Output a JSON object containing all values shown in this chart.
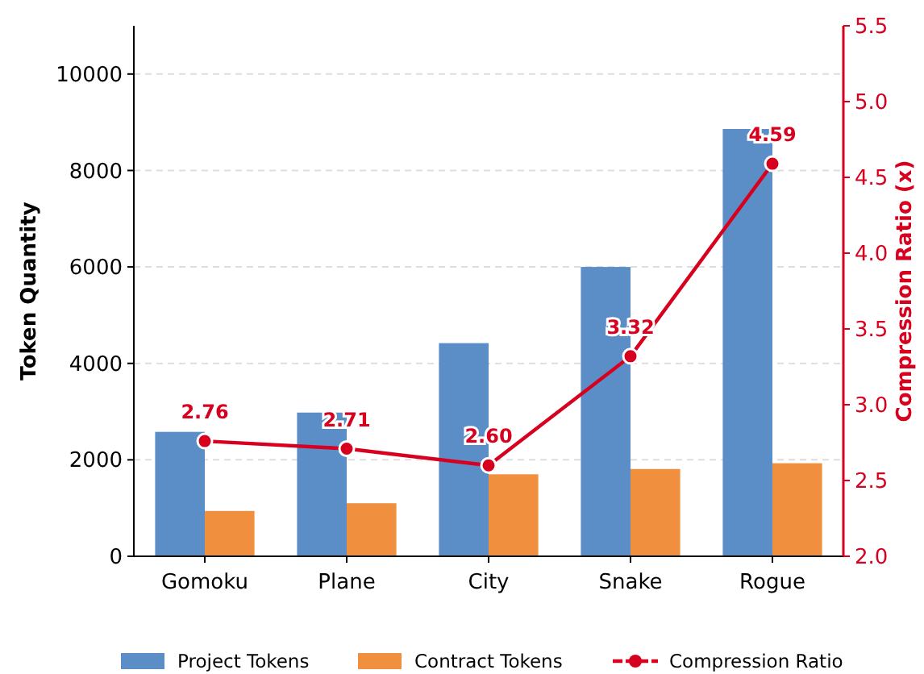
{
  "chart_data": {
    "type": "bar",
    "xlabel": null,
    "ylabel": "Token Quantity",
    "y2label": "Compression Ratio (x)",
    "categories": [
      "Gomoku",
      "Plane",
      "City",
      "Snake",
      "Rogue"
    ],
    "series": [
      {
        "name": "Project Tokens",
        "color": "#5b8ec6",
        "values": [
          2580,
          2980,
          4420,
          6000,
          8860
        ]
      },
      {
        "name": "Contract Tokens",
        "color": "#f0903f",
        "values": [
          940,
          1100,
          1700,
          1810,
          1930
        ]
      },
      {
        "name": "Compression Ratio",
        "type": "line",
        "axis": "y2",
        "color": "#d7001f",
        "marker": "circle",
        "values": [
          2.76,
          2.71,
          2.6,
          3.32,
          4.59
        ],
        "value_labels": [
          "2.76",
          "2.71",
          "2.60",
          "3.32",
          "4.59"
        ]
      }
    ],
    "ylim": [
      0,
      11000
    ],
    "yticks": [
      0,
      2000,
      4000,
      6000,
      8000,
      10000
    ],
    "y2lim": [
      2.0,
      5.5
    ],
    "y2ticks": [
      {
        "value": 2.0,
        "label": "2.0"
      },
      {
        "value": 2.5,
        "label": "2.5"
      },
      {
        "value": 3.0,
        "label": "3.0"
      },
      {
        "value": 3.5,
        "label": "3.5"
      },
      {
        "value": 4.0,
        "label": "4.0"
      },
      {
        "value": 4.5,
        "label": "4.5"
      },
      {
        "value": 5.0,
        "label": "5.0"
      },
      {
        "value": 5.5,
        "label": "5.5"
      }
    ],
    "grid": "y",
    "legend": "bottom"
  }
}
